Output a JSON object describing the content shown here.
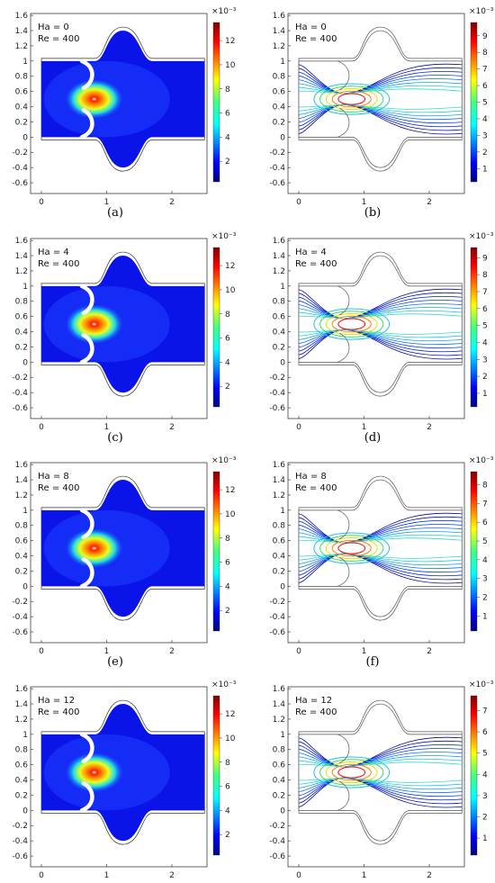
{
  "chart_data": [
    {
      "type": "heatmap",
      "caption": "(a)",
      "annotation": [
        "Ha = 0",
        "Re = 400"
      ],
      "xticks": [
        "0",
        "1",
        "2"
      ],
      "yticks": [
        "1.6",
        "1.4",
        "1.2",
        "1",
        "0.8",
        "0.6",
        "0.4",
        "0.2",
        "0",
        "-0.2",
        "-0.4",
        "-0.6"
      ],
      "colorbar": {
        "exponent": "×10⁻³",
        "ticks": [
          "12",
          "10",
          "8",
          "6",
          "4",
          "2"
        ],
        "range": [
          0.3,
          13.5
        ]
      }
    },
    {
      "type": "contour",
      "caption": "(b)",
      "annotation": [
        "Ha = 0",
        "Re = 400"
      ],
      "xticks": [
        "0",
        "1",
        "2"
      ],
      "yticks": [
        "1.6",
        "1.4",
        "1.2",
        "1",
        "0.8",
        "0.6",
        "0.4",
        "0.2",
        "0",
        "-0.2",
        "-0.4",
        "-0.6"
      ],
      "colorbar": {
        "exponent": "×10⁻³",
        "ticks": [
          "9",
          "8",
          "7",
          "6",
          "5",
          "4",
          "3",
          "2",
          "1"
        ],
        "range": [
          0.2,
          9.8
        ]
      }
    },
    {
      "type": "heatmap",
      "caption": "(c)",
      "annotation": [
        "Ha = 4",
        "Re = 400"
      ],
      "xticks": [
        "0",
        "1",
        "2"
      ],
      "yticks": [
        "1.6",
        "1.4",
        "1.2",
        "1",
        "0.8",
        "0.6",
        "0.4",
        "0.2",
        "0",
        "-0.2",
        "-0.4",
        "-0.6"
      ],
      "colorbar": {
        "exponent": "×10⁻³",
        "ticks": [
          "12",
          "10",
          "8",
          "6",
          "4",
          "2"
        ],
        "range": [
          0.3,
          13.5
        ]
      }
    },
    {
      "type": "contour",
      "caption": "(d)",
      "annotation": [
        "Ha = 4",
        "Re = 400"
      ],
      "xticks": [
        "0",
        "1",
        "2"
      ],
      "yticks": [
        "1.6",
        "1.4",
        "1.2",
        "1",
        "0.8",
        "0.6",
        "0.4",
        "0.2",
        "0",
        "-0.2",
        "-0.4",
        "-0.6"
      ],
      "colorbar": {
        "exponent": "×10⁻³",
        "ticks": [
          "9",
          "8",
          "7",
          "6",
          "5",
          "4",
          "3",
          "2",
          "1"
        ],
        "range": [
          0.2,
          9.6
        ]
      }
    },
    {
      "type": "heatmap",
      "caption": "(e)",
      "annotation": [
        "Ha = 8",
        "Re = 400"
      ],
      "xticks": [
        "0",
        "1",
        "2"
      ],
      "yticks": [
        "1.6",
        "1.4",
        "1.2",
        "1",
        "0.8",
        "0.6",
        "0.4",
        "0.2",
        "0",
        "-0.2",
        "-0.4",
        "-0.6"
      ],
      "colorbar": {
        "exponent": "×10⁻³",
        "ticks": [
          "12",
          "10",
          "8",
          "6",
          "4",
          "2"
        ],
        "range": [
          0.3,
          13.5
        ]
      }
    },
    {
      "type": "contour",
      "caption": "(f)",
      "annotation": [
        "Ha = 8",
        "Re = 400"
      ],
      "xticks": [
        "0",
        "1",
        "2"
      ],
      "yticks": [
        "1.6",
        "1.4",
        "1.2",
        "1",
        "0.8",
        "0.6",
        "0.4",
        "0.2",
        "0",
        "-0.2",
        "-0.4",
        "-0.6"
      ],
      "colorbar": {
        "exponent": "×10⁻³",
        "ticks": [
          "8",
          "7",
          "6",
          "5",
          "4",
          "3",
          "2",
          "1"
        ],
        "range": [
          0.2,
          8.7
        ]
      }
    },
    {
      "type": "heatmap",
      "caption": "(g)",
      "annotation": [
        "Ha = 12",
        "Re = 400"
      ],
      "xticks": [
        "0",
        "1",
        "2"
      ],
      "yticks": [
        "1.6",
        "1.4",
        "1.2",
        "1",
        "0.8",
        "0.6",
        "0.4",
        "0.2",
        "0",
        "-0.2",
        "-0.4",
        "-0.6"
      ],
      "colorbar": {
        "exponent": "×10⁻³",
        "ticks": [
          "12",
          "10",
          "8",
          "6",
          "4",
          "2"
        ],
        "range": [
          0.3,
          13.5
        ]
      }
    },
    {
      "type": "contour",
      "caption": "(h)",
      "annotation": [
        "Ha = 12",
        "Re = 400"
      ],
      "xticks": [
        "0",
        "1",
        "2"
      ],
      "yticks": [
        "1.6",
        "1.4",
        "1.2",
        "1",
        "0.8",
        "0.6",
        "0.4",
        "0.2",
        "0",
        "-0.2",
        "-0.4",
        "-0.6"
      ],
      "colorbar": {
        "exponent": "×10⁻³",
        "ticks": [
          "7",
          "6",
          "5",
          "4",
          "3",
          "2",
          "1"
        ],
        "range": [
          0.2,
          7.7
        ]
      }
    }
  ]
}
